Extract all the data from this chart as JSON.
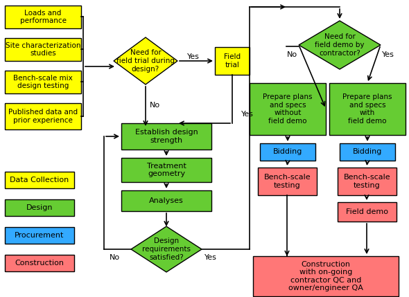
{
  "colors": {
    "yellow": "#FFFF00",
    "green": "#66CC33",
    "blue": "#33AAFF",
    "red": "#FF7777",
    "white": "#FFFFFF",
    "black": "#000000"
  },
  "legend": [
    {
      "label": "Data Collection",
      "color": "#FFFF00"
    },
    {
      "label": "Design",
      "color": "#66CC33"
    },
    {
      "label": "Procurement",
      "color": "#33AAFF"
    },
    {
      "label": "Construction",
      "color": "#FF7777"
    }
  ],
  "fig_w": 5.9,
  "fig_h": 4.29,
  "dpi": 100
}
